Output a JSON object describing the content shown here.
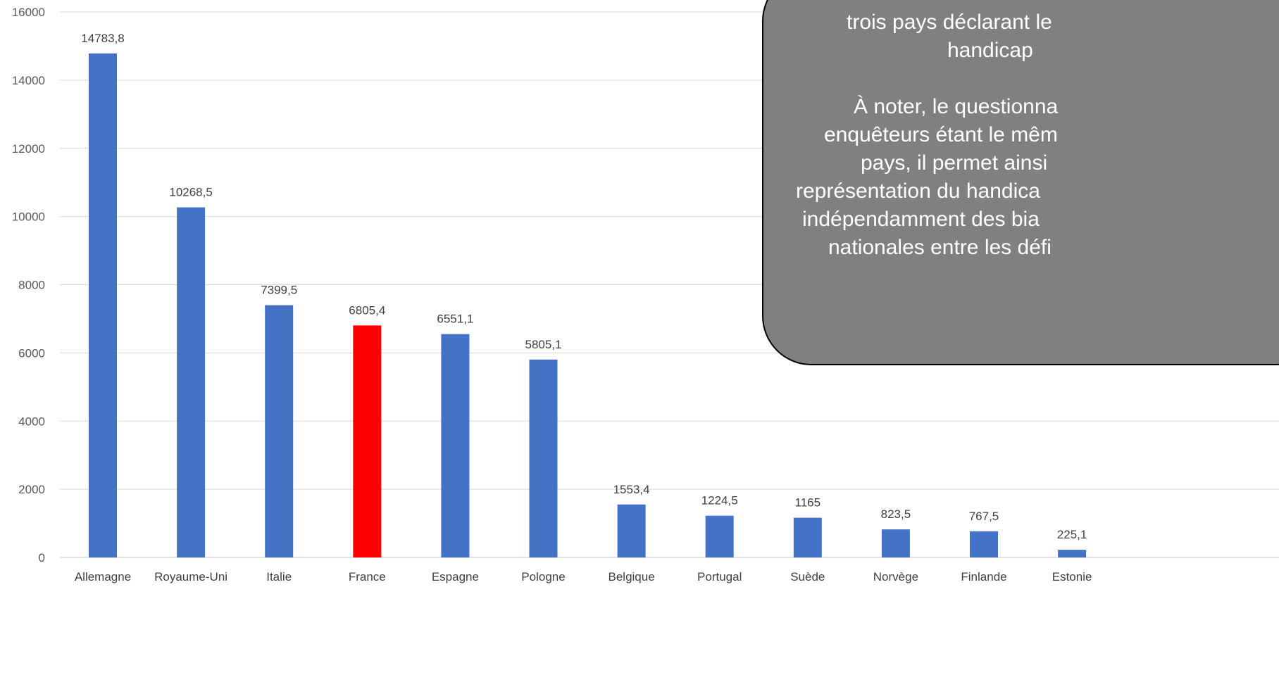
{
  "chart_data": {
    "type": "bar",
    "categories": [
      "Allemagne",
      "Royaume-Uni",
      "Italie",
      "France",
      "Espagne",
      "Pologne",
      "Belgique",
      "Portugal",
      "Suède",
      "Norvège",
      "Finlande",
      "Estonie"
    ],
    "values": [
      14783.8,
      10268.5,
      7399.5,
      6805.4,
      6551.1,
      5805.1,
      1553.4,
      1224.5,
      1165,
      823.5,
      767.5,
      225.1
    ],
    "value_labels": [
      "14783,8",
      "10268,5",
      "7399,5",
      "6805,4",
      "6551,1",
      "5805,1",
      "1553,4",
      "1224,5",
      "1165",
      "823,5",
      "767,5",
      "225,1"
    ],
    "highlight_category": "France",
    "ylim": [
      0,
      16000
    ],
    "yticks": [
      0,
      2000,
      4000,
      6000,
      8000,
      10000,
      12000,
      14000,
      16000
    ],
    "grid": true,
    "colors": {
      "bar": "#4472C4",
      "highlight": "#FF0000",
      "grid": "#D9D9D9"
    }
  },
  "callout": {
    "lines": [
      "trois pays déclarant le",
      "handicap",
      "",
      "À noter, le questionna",
      "enquêteurs étant le mêm",
      "pays, il permet ainsi",
      "représentation du handica",
      "indépendamment des bia",
      "nationales entre les défi"
    ],
    "colors": {
      "background": "#808080",
      "text": "#FFFFFF"
    }
  }
}
